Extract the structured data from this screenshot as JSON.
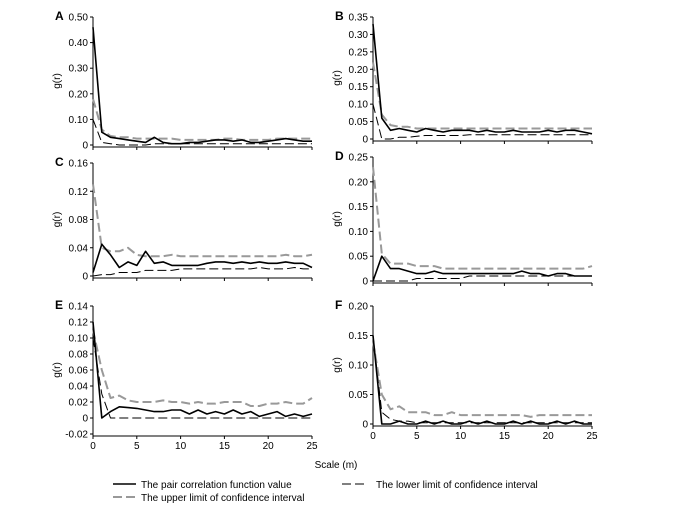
{
  "chart_data": [
    {
      "type": "line",
      "panel": "A",
      "ylabel": "g(r)",
      "xlim": [
        0,
        25
      ],
      "ylim": [
        0,
        0.5
      ],
      "yticks": [
        "0",
        "0.10",
        "0.20",
        "0.30",
        "0.40",
        "0.50"
      ],
      "ytick_values": [
        0,
        0.1,
        0.2,
        0.3,
        0.4,
        0.5
      ],
      "xticks": [],
      "xtick_values": [],
      "x": [
        0,
        1,
        2,
        3,
        4,
        5,
        6,
        7,
        8,
        9,
        10,
        11,
        12,
        13,
        14,
        15,
        16,
        17,
        18,
        19,
        20,
        21,
        22,
        23,
        24,
        25
      ],
      "series": [
        {
          "name": "The pair correlation function value",
          "values": [
            0.46,
            0.05,
            0.03,
            0.025,
            0.02,
            0.015,
            0.01,
            0.03,
            0.01,
            0.005,
            0.005,
            0.01,
            0.01,
            0.015,
            0.02,
            0.02,
            0.015,
            0.02,
            0.01,
            0.01,
            0.015,
            0.02,
            0.025,
            0.02,
            0.015,
            0.015
          ]
        },
        {
          "name": "The upper limit of confidence interval",
          "values": [
            0.18,
            0.06,
            0.035,
            0.03,
            0.03,
            0.025,
            0.025,
            0.025,
            0.025,
            0.025,
            0.02,
            0.02,
            0.02,
            0.02,
            0.02,
            0.025,
            0.025,
            0.02,
            0.02,
            0.02,
            0.02,
            0.025,
            0.025,
            0.025,
            0.025,
            0.025
          ]
        },
        {
          "name": "The lower limit of confidence interval",
          "values": [
            0.1,
            0.01,
            0.005,
            0.0,
            0.0,
            0.0,
            0.0,
            0.005,
            0.005,
            0.005,
            0.005,
            0.005,
            0.005,
            0.005,
            0.005,
            0.005,
            0.005,
            0.005,
            0.005,
            0.005,
            0.005,
            0.005,
            0.005,
            0.005,
            0.005,
            0.005
          ]
        }
      ]
    },
    {
      "type": "line",
      "panel": "B",
      "ylabel": "g(r)",
      "xlim": [
        0,
        25
      ],
      "ylim": [
        0,
        0.35
      ],
      "yticks": [
        "0",
        "0.05",
        "0.10",
        "0.15",
        "0.20",
        "0.25",
        "0.30",
        "0.35"
      ],
      "ytick_values": [
        0,
        0.05,
        0.1,
        0.15,
        0.2,
        0.25,
        0.3,
        0.35
      ],
      "xticks": [],
      "xtick_values": [],
      "x": [
        0,
        1,
        2,
        3,
        4,
        5,
        6,
        7,
        8,
        9,
        10,
        11,
        12,
        13,
        14,
        15,
        16,
        17,
        18,
        19,
        20,
        21,
        22,
        23,
        24,
        25
      ],
      "series": [
        {
          "name": "The pair correlation function value",
          "values": [
            0.33,
            0.06,
            0.025,
            0.03,
            0.025,
            0.02,
            0.03,
            0.025,
            0.02,
            0.025,
            0.025,
            0.025,
            0.02,
            0.025,
            0.02,
            0.02,
            0.025,
            0.02,
            0.02,
            0.02,
            0.025,
            0.02,
            0.025,
            0.025,
            0.02,
            0.015
          ]
        },
        {
          "name": "The upper limit of confidence interval",
          "values": [
            0.22,
            0.07,
            0.04,
            0.035,
            0.035,
            0.03,
            0.03,
            0.03,
            0.03,
            0.03,
            0.03,
            0.03,
            0.03,
            0.03,
            0.03,
            0.03,
            0.03,
            0.03,
            0.03,
            0.03,
            0.03,
            0.03,
            0.03,
            0.03,
            0.03,
            0.03
          ]
        },
        {
          "name": "The lower limit of confidence interval",
          "values": [
            0.1,
            0.0,
            0.0,
            0.005,
            0.005,
            0.008,
            0.01,
            0.01,
            0.01,
            0.01,
            0.01,
            0.012,
            0.012,
            0.012,
            0.012,
            0.012,
            0.012,
            0.012,
            0.012,
            0.012,
            0.012,
            0.012,
            0.012,
            0.012,
            0.012,
            0.012
          ]
        }
      ]
    },
    {
      "type": "line",
      "panel": "C",
      "ylabel": "g(r)",
      "xlim": [
        0,
        25
      ],
      "ylim": [
        0,
        0.16
      ],
      "yticks": [
        "0",
        "0.04",
        "0.08",
        "0.12",
        "0.16"
      ],
      "ytick_values": [
        0,
        0.04,
        0.08,
        0.12,
        0.16
      ],
      "xticks": [],
      "xtick_values": [],
      "x": [
        0,
        1,
        2,
        3,
        4,
        5,
        6,
        7,
        8,
        9,
        10,
        11,
        12,
        13,
        14,
        15,
        16,
        17,
        18,
        19,
        20,
        21,
        22,
        23,
        24,
        25
      ],
      "series": [
        {
          "name": "The pair correlation function value",
          "values": [
            0.005,
            0.045,
            0.03,
            0.012,
            0.02,
            0.015,
            0.035,
            0.018,
            0.02,
            0.015,
            0.015,
            0.015,
            0.015,
            0.018,
            0.02,
            0.02,
            0.018,
            0.02,
            0.018,
            0.02,
            0.018,
            0.018,
            0.02,
            0.018,
            0.018,
            0.012
          ]
        },
        {
          "name": "The upper limit of confidence interval",
          "values": [
            0.13,
            0.04,
            0.035,
            0.035,
            0.04,
            0.03,
            0.028,
            0.028,
            0.028,
            0.03,
            0.028,
            0.028,
            0.028,
            0.028,
            0.028,
            0.028,
            0.028,
            0.028,
            0.028,
            0.028,
            0.028,
            0.028,
            0.03,
            0.028,
            0.028,
            0.03
          ]
        },
        {
          "name": "The lower limit of confidence interval",
          "values": [
            0.0,
            0.002,
            0.002,
            0.005,
            0.005,
            0.005,
            0.008,
            0.008,
            0.008,
            0.008,
            0.01,
            0.01,
            0.01,
            0.01,
            0.01,
            0.01,
            0.01,
            0.01,
            0.01,
            0.012,
            0.01,
            0.01,
            0.01,
            0.012,
            0.01,
            0.01
          ]
        }
      ]
    },
    {
      "type": "line",
      "panel": "D",
      "ylabel": "g(r)",
      "xlim": [
        0,
        25
      ],
      "ylim": [
        0,
        0.25
      ],
      "yticks": [
        "0",
        "0.05",
        "0.10",
        "0.15",
        "0.20",
        "0.25"
      ],
      "ytick_values": [
        0,
        0.05,
        0.1,
        0.15,
        0.2,
        0.25
      ],
      "xticks": [],
      "xtick_values": [],
      "x": [
        0,
        1,
        2,
        3,
        4,
        5,
        6,
        7,
        8,
        9,
        10,
        11,
        12,
        13,
        14,
        15,
        16,
        17,
        18,
        19,
        20,
        21,
        22,
        23,
        24,
        25
      ],
      "series": [
        {
          "name": "The pair correlation function value",
          "values": [
            0.0,
            0.05,
            0.025,
            0.025,
            0.02,
            0.015,
            0.015,
            0.02,
            0.015,
            0.015,
            0.015,
            0.015,
            0.015,
            0.015,
            0.015,
            0.015,
            0.015,
            0.02,
            0.015,
            0.015,
            0.01,
            0.015,
            0.015,
            0.01,
            0.01,
            0.01
          ]
        },
        {
          "name": "The upper limit of confidence interval",
          "values": [
            0.23,
            0.055,
            0.035,
            0.035,
            0.035,
            0.03,
            0.03,
            0.03,
            0.025,
            0.025,
            0.025,
            0.025,
            0.025,
            0.025,
            0.025,
            0.025,
            0.025,
            0.025,
            0.025,
            0.025,
            0.025,
            0.025,
            0.025,
            0.025,
            0.025,
            0.03
          ]
        },
        {
          "name": "The lower limit of confidence interval",
          "values": [
            0.0,
            0.0,
            0.0,
            0.0,
            0.0,
            0.005,
            0.005,
            0.005,
            0.005,
            0.005,
            0.005,
            0.01,
            0.01,
            0.01,
            0.01,
            0.01,
            0.01,
            0.01,
            0.01,
            0.01,
            0.01,
            0.01,
            0.01,
            0.01,
            0.01,
            0.01
          ]
        }
      ]
    },
    {
      "type": "line",
      "panel": "E",
      "ylabel": "g(r)",
      "xlim": [
        0,
        25
      ],
      "ylim": [
        -0.02,
        0.14
      ],
      "yticks": [
        "-0.02",
        "0",
        "0.02",
        "0.04",
        "0.06",
        "0.08",
        "0.10",
        "0.12",
        "0.14"
      ],
      "ytick_values": [
        -0.02,
        0,
        0.02,
        0.04,
        0.06,
        0.08,
        0.1,
        0.12,
        0.14
      ],
      "xticks": [
        "0",
        "5",
        "10",
        "15",
        "20",
        "25"
      ],
      "xtick_values": [
        0,
        5,
        10,
        15,
        20,
        25
      ],
      "x": [
        0,
        1,
        2,
        3,
        4,
        5,
        6,
        7,
        8,
        9,
        10,
        11,
        12,
        13,
        14,
        15,
        16,
        17,
        18,
        19,
        20,
        21,
        22,
        23,
        24,
        25
      ],
      "series": [
        {
          "name": "The pair correlation function value",
          "values": [
            0.12,
            0.0,
            0.008,
            0.014,
            0.013,
            0.012,
            0.01,
            0.008,
            0.008,
            0.01,
            0.01,
            0.005,
            0.01,
            0.005,
            0.008,
            0.005,
            0.01,
            0.005,
            0.008,
            0.002,
            0.005,
            0.008,
            0.002,
            0.005,
            0.002,
            0.005
          ]
        },
        {
          "name": "The upper limit of confidence interval",
          "values": [
            0.11,
            0.06,
            0.025,
            0.028,
            0.022,
            0.02,
            0.02,
            0.02,
            0.022,
            0.02,
            0.02,
            0.018,
            0.02,
            0.018,
            0.018,
            0.02,
            0.02,
            0.02,
            0.015,
            0.015,
            0.018,
            0.018,
            0.02,
            0.018,
            0.018,
            0.025
          ]
        },
        {
          "name": "The lower limit of confidence interval",
          "values": [
            0.1,
            0.03,
            0.0,
            0.0,
            0.0,
            0.0,
            0.0,
            0.0,
            0.0,
            0.0,
            0.0,
            0.0,
            0.0,
            0.0,
            0.0,
            0.0,
            0.0,
            0.0,
            0.0,
            0.0,
            0.0,
            0.0,
            0.0,
            0.0,
            0.0,
            0.0
          ]
        }
      ]
    },
    {
      "type": "line",
      "panel": "F",
      "ylabel": "g(r)",
      "xlim": [
        0,
        25
      ],
      "ylim": [
        0,
        0.2
      ],
      "yticks": [
        "0",
        "0.05",
        "0.10",
        "0.15",
        "0.20"
      ],
      "ytick_values": [
        0,
        0.05,
        0.1,
        0.15,
        0.2
      ],
      "xticks": [
        "0",
        "5",
        "10",
        "15",
        "20",
        "25"
      ],
      "xtick_values": [
        0,
        5,
        10,
        15,
        20,
        25
      ],
      "x": [
        0,
        1,
        2,
        3,
        4,
        5,
        6,
        7,
        8,
        9,
        10,
        11,
        12,
        13,
        14,
        15,
        16,
        17,
        18,
        19,
        20,
        21,
        22,
        23,
        24,
        25
      ],
      "series": [
        {
          "name": "The pair correlation function value",
          "values": [
            0.15,
            0.0,
            0.0,
            0.005,
            0.0,
            0.0,
            0.005,
            0.0,
            0.005,
            0.0,
            0.0,
            0.005,
            0.0,
            0.005,
            0.0,
            0.0,
            0.005,
            0.0,
            0.005,
            0.0,
            0.0,
            0.005,
            0.0,
            0.005,
            0.0,
            0.0
          ]
        },
        {
          "name": "The upper limit of confidence interval",
          "values": [
            0.14,
            0.05,
            0.025,
            0.03,
            0.02,
            0.02,
            0.02,
            0.015,
            0.015,
            0.02,
            0.015,
            0.015,
            0.015,
            0.015,
            0.015,
            0.015,
            0.015,
            0.015,
            0.012,
            0.015,
            0.015,
            0.015,
            0.015,
            0.015,
            0.015,
            0.015
          ]
        },
        {
          "name": "The lower limit of confidence interval",
          "values": [
            0.15,
            0.02,
            0.008,
            0.005,
            0.005,
            0.002,
            0.002,
            0.002,
            0.002,
            0.002,
            0.002,
            0.002,
            0.002,
            0.002,
            0.002,
            0.002,
            0.002,
            0.002,
            0.002,
            0.002,
            0.002,
            0.002,
            0.002,
            0.002,
            0.002,
            0.002
          ]
        }
      ]
    }
  ],
  "xlabel": "Scale (m)",
  "legend": {
    "entries": [
      {
        "label": "The pair correlation function value",
        "style": "solid",
        "color": "#000000"
      },
      {
        "label": "The lower limit of confidence interval",
        "style": "dashed",
        "color": "#000000"
      },
      {
        "label": "The upper limit of confidence interval",
        "style": "dashed",
        "color": "#999999"
      }
    ]
  },
  "colors": {
    "pcf": "#000000",
    "upper": "#999999",
    "lower": "#000000"
  }
}
